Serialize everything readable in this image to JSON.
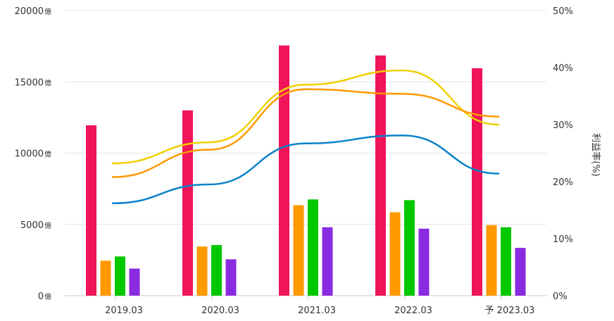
{
  "chart_data": {
    "type": "bar",
    "categories": [
      "2019.03",
      "2020.03",
      "2021.03",
      "2022.03",
      "予 2023.03"
    ],
    "y_left": {
      "ticks": [
        0,
        5000,
        10000,
        15000,
        20000
      ],
      "unit": "億",
      "ylim": [
        0,
        20000
      ]
    },
    "y_right": {
      "ticks": [
        "0%",
        "10%",
        "20%",
        "30%",
        "40%",
        "50%"
      ],
      "ylabel": "利益率(%)",
      "ylim": [
        0,
        50
      ]
    },
    "bar_series": [
      {
        "color": "#f0145a",
        "values": [
          11950,
          13000,
          17550,
          16850,
          15950
        ]
      },
      {
        "color": "#ff9900",
        "values": [
          2450,
          3450,
          6350,
          5850,
          4950
        ]
      },
      {
        "color": "#00c800",
        "values": [
          2750,
          3550,
          6750,
          6700,
          4800
        ]
      },
      {
        "color": "#8a2be2",
        "values": [
          1900,
          2550,
          4800,
          4700,
          3350
        ]
      }
    ],
    "line_series": [
      {
        "color": "#f0d000",
        "values": [
          23.2,
          26.9,
          37.0,
          39.5,
          30.0
        ]
      },
      {
        "color": "#ff9900",
        "values": [
          20.8,
          25.6,
          36.2,
          35.4,
          31.4
        ]
      },
      {
        "color": "#0a82c8",
        "values": [
          16.2,
          19.5,
          26.7,
          28.1,
          21.4
        ]
      }
    ],
    "grid": true,
    "legend": "none"
  }
}
